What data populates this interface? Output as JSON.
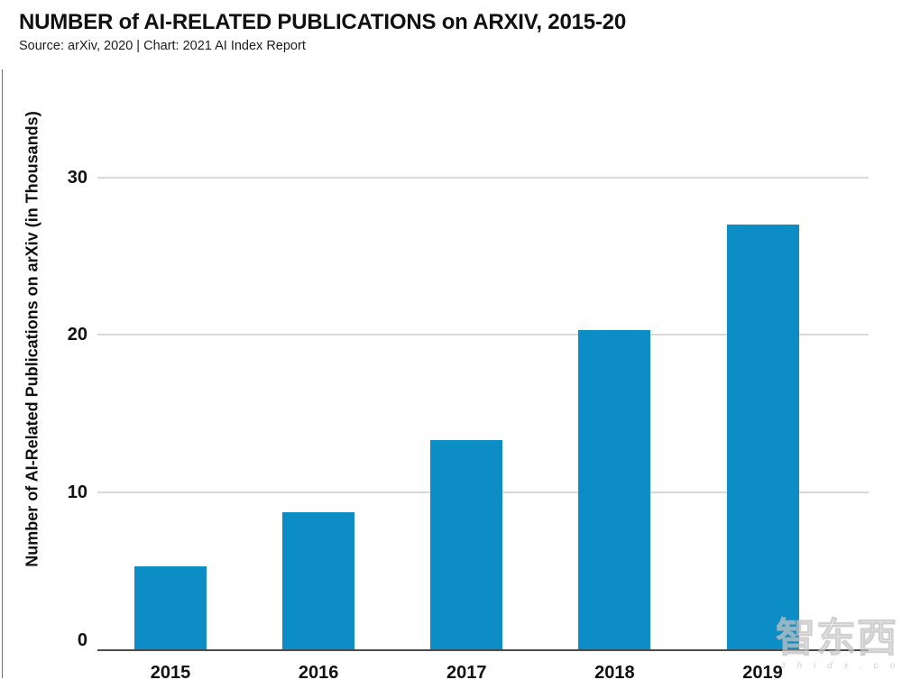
{
  "header": {
    "title": "NUMBER of AI-RELATED PUBLICATIONS on ARXIV, 2015-20",
    "subtitle": "Source: arXiv, 2020 | Chart: 2021 AI Index Report"
  },
  "chart_data": {
    "type": "bar",
    "title": "NUMBER of AI-RELATED PUBLICATIONS on ARXIV, 2015-20",
    "subtitle": "Source: arXiv, 2020 | Chart: 2021 AI Index Report",
    "categories": [
      "2015",
      "2016",
      "2017",
      "2018",
      "2019"
    ],
    "values": [
      5.3,
      8.7,
      13.3,
      20.3,
      27.0
    ],
    "xlabel": "",
    "ylabel": "Number of AI-Related Publications on arXiv (in Thousands)",
    "ylim": [
      0,
      35
    ],
    "yticks": [
      0,
      10,
      20,
      30
    ],
    "grid": true,
    "legend": false,
    "bar_color": "#0d8dc6"
  },
  "colors": {
    "bar": "#0d8dc6",
    "grid": "#d9d9d9",
    "axis": "#4a4a4a",
    "text": "#111111"
  },
  "watermark": {
    "cn": "智东西",
    "latin": "z h i d x . c o m"
  }
}
